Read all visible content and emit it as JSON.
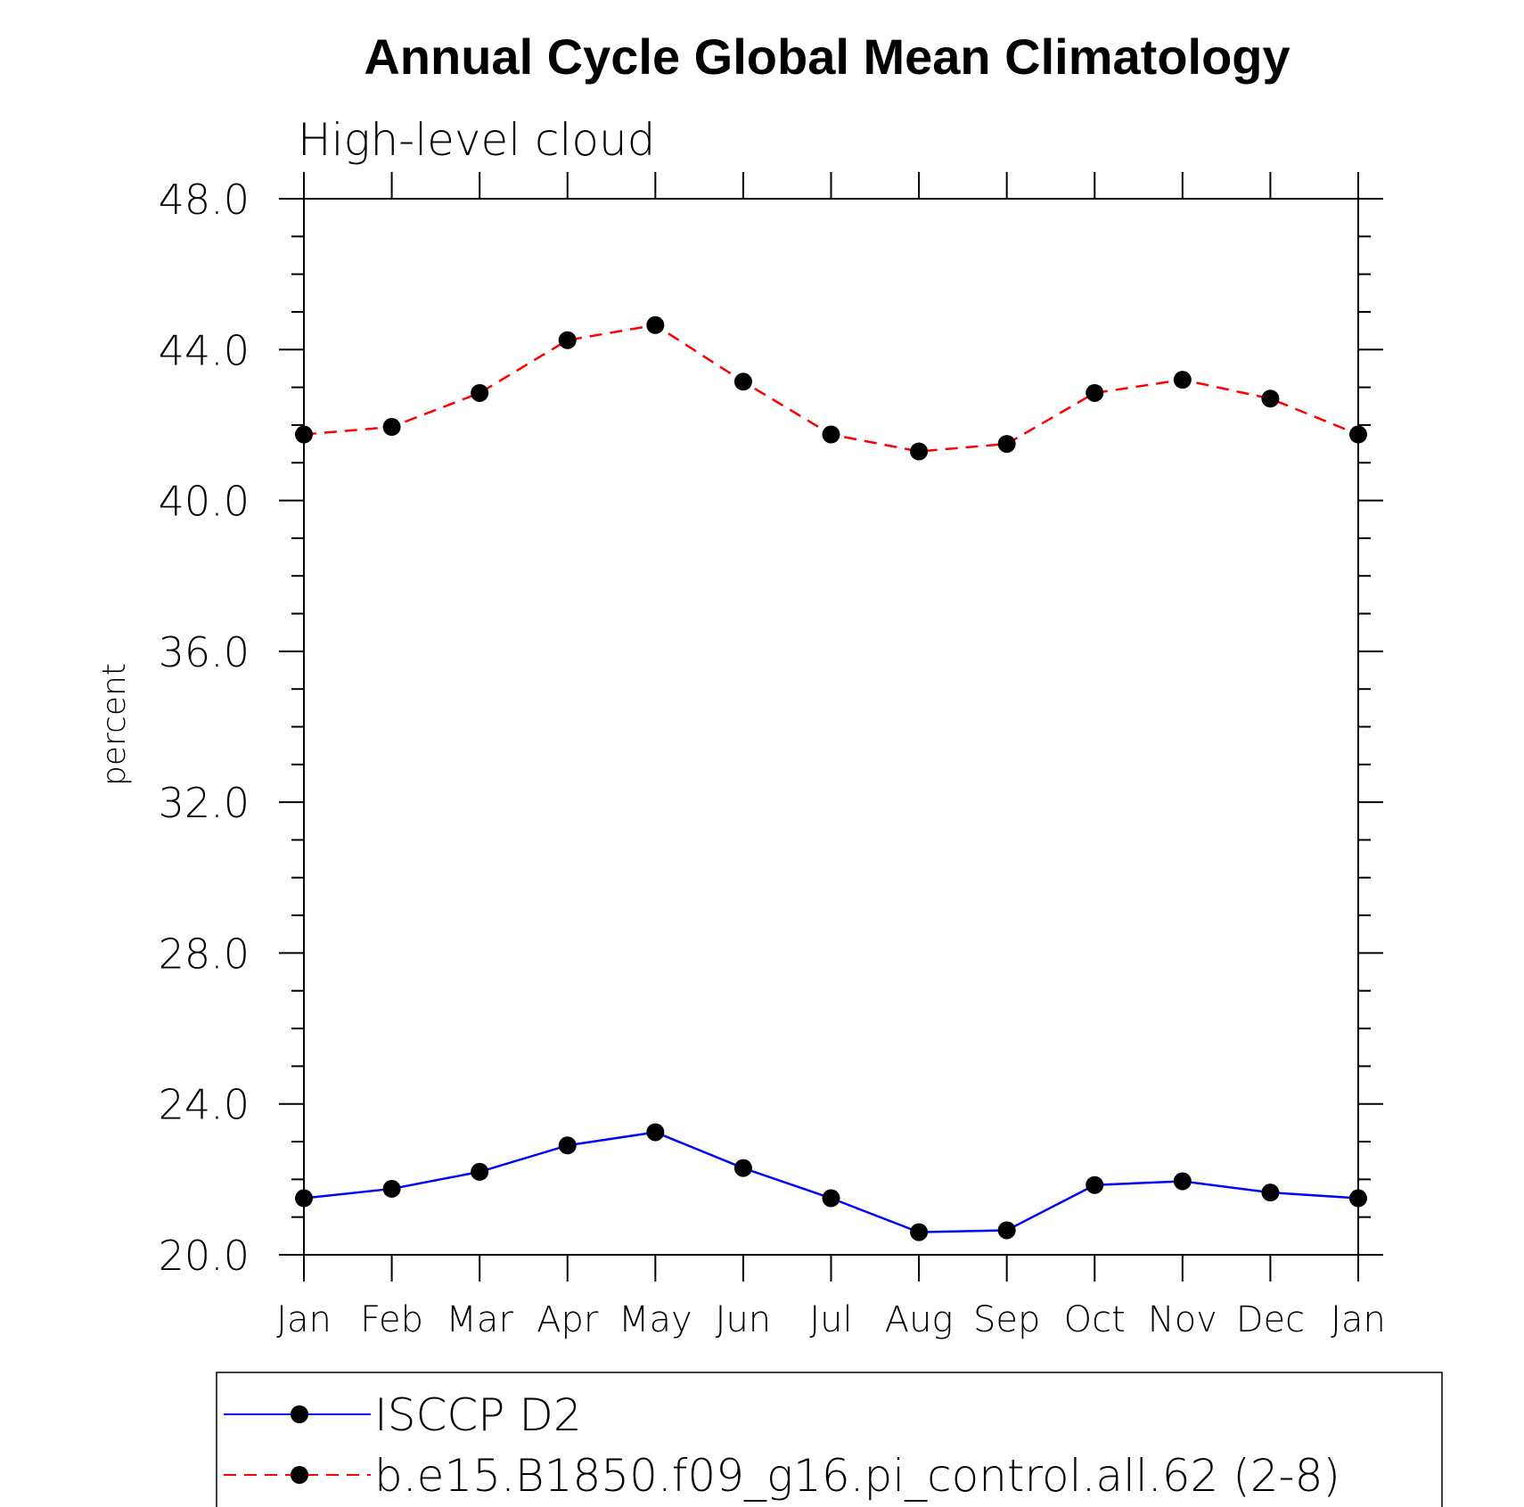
{
  "chart_data": {
    "type": "line",
    "title": "Annual Cycle Global Mean Climatology",
    "subtitle": "High-level cloud",
    "xlabel": "",
    "ylabel": "percent",
    "ylim": [
      20.0,
      48.0
    ],
    "yticks": [
      "20.0",
      "24.0",
      "28.0",
      "32.0",
      "36.0",
      "40.0",
      "44.0",
      "48.0"
    ],
    "categories": [
      "Jan",
      "Feb",
      "Mar",
      "Apr",
      "May",
      "Jun",
      "Jul",
      "Aug",
      "Sep",
      "Oct",
      "Nov",
      "Dec",
      "Jan"
    ],
    "series": [
      {
        "name": "ISCCP D2",
        "color": "#0000ff",
        "dash": "solid",
        "values": [
          21.5,
          21.75,
          22.2,
          22.9,
          23.25,
          22.3,
          21.5,
          20.6,
          20.65,
          21.85,
          21.95,
          21.65,
          21.5
        ]
      },
      {
        "name": "b.e15.B1850.f09_g16.pi_control.all.62 (2-8)",
        "color": "#ff0000",
        "dash": "dashed",
        "values": [
          41.75,
          41.95,
          42.85,
          44.25,
          44.65,
          43.15,
          41.75,
          41.3,
          41.5,
          42.85,
          43.2,
          42.7,
          41.75
        ]
      }
    ],
    "legend_position": "bottom"
  }
}
